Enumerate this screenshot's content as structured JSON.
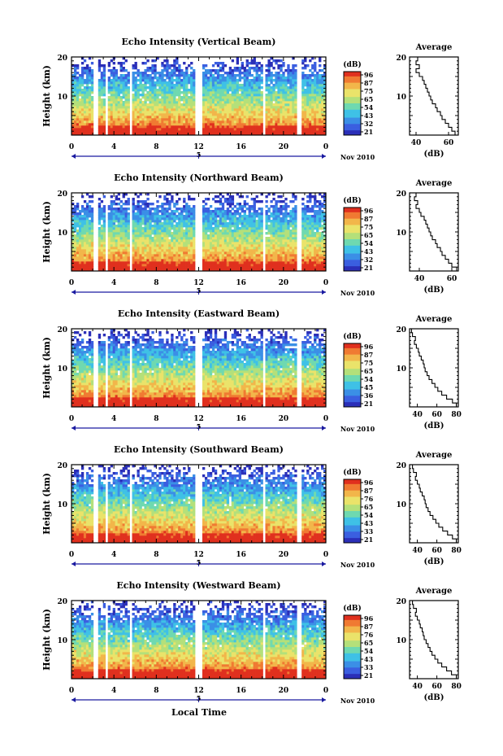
{
  "figure": {
    "xlabel": "Local Time",
    "date_label": "Nov 2010",
    "colors": {
      "colormap": [
        "#2b2fb8",
        "#3b5fe0",
        "#3b8fe6",
        "#3fc1e6",
        "#6fd9b0",
        "#b4e07a",
        "#eae36a",
        "#f2b64a",
        "#f07a32",
        "#e0301e"
      ]
    }
  },
  "chart_data": [
    {
      "type": "heatmap",
      "title": "Echo Intensity (Vertical Beam)",
      "xlabel": "",
      "ylabel": "Height (km)",
      "x_ticks": [
        "0",
        "4",
        "8",
        "12",
        "16",
        "20",
        "0"
      ],
      "day_label": "5",
      "y_ticks": [
        "10",
        "20"
      ],
      "xlim": [
        0,
        24
      ],
      "ylim": [
        0,
        20
      ],
      "gaps_hours": [
        [
          2.1,
          2.5
        ],
        [
          3.1,
          3.4
        ],
        [
          5.4,
          5.7
        ],
        [
          11.7,
          12.3
        ],
        [
          18.0,
          18.3
        ],
        [
          21.3,
          21.6
        ]
      ],
      "colorbar": {
        "label": "(dB)",
        "ticks": [
          "96",
          "87",
          "75",
          "65",
          "54",
          "43",
          "32",
          "21"
        ]
      },
      "profile": {
        "title": "Average",
        "xlabel": "(dB)",
        "x_ticks": [
          "40",
          "60"
        ],
        "xlim": [
          36,
          66
        ],
        "y_ticks": [
          "10",
          "20"
        ],
        "ylim": [
          0,
          20
        ],
        "height": [
          0.5,
          1.5,
          2.5,
          3.5,
          4.5,
          5.5,
          6.5,
          7.5,
          8.5,
          9.5,
          10.5,
          11.5,
          12.5,
          13.5,
          14.5,
          15.5,
          16.5,
          17.5,
          18.5,
          19.5
        ],
        "value": [
          64,
          62,
          60,
          58,
          56,
          55,
          53,
          52,
          50,
          49,
          48,
          47,
          46,
          45,
          44,
          42,
          40,
          42,
          40,
          41
        ]
      }
    },
    {
      "type": "heatmap",
      "title": "Echo Intensity (Northward Beam)",
      "xlabel": "",
      "ylabel": "Height (km)",
      "x_ticks": [
        "0",
        "4",
        "8",
        "12",
        "16",
        "20",
        "0"
      ],
      "day_label": "5",
      "y_ticks": [
        "10",
        "20"
      ],
      "xlim": [
        0,
        24
      ],
      "ylim": [
        0,
        20
      ],
      "gaps_hours": [
        [
          2.1,
          2.5
        ],
        [
          3.1,
          3.4
        ],
        [
          5.4,
          5.7
        ],
        [
          11.7,
          12.3
        ],
        [
          18.0,
          18.3
        ],
        [
          21.3,
          21.6
        ]
      ],
      "colorbar": {
        "label": "(dB)",
        "ticks": [
          "96",
          "87",
          "75",
          "65",
          "54",
          "43",
          "32",
          "21"
        ]
      },
      "profile": {
        "title": "Average",
        "xlabel": "(dB)",
        "x_ticks": [
          "40",
          "60"
        ],
        "xlim": [
          34,
          64
        ],
        "y_ticks": [
          "10",
          "20"
        ],
        "ylim": [
          0,
          20
        ],
        "height": [
          0.5,
          1.5,
          2.5,
          3.5,
          4.5,
          5.5,
          6.5,
          7.5,
          8.5,
          9.5,
          10.5,
          11.5,
          12.5,
          13.5,
          14.5,
          15.5,
          16.5,
          17.5,
          18.5,
          19.5
        ],
        "value": [
          63,
          60,
          58,
          56,
          54,
          53,
          51,
          50,
          48,
          47,
          46,
          45,
          44,
          43,
          41,
          40,
          38,
          39,
          37,
          38
        ]
      }
    },
    {
      "type": "heatmap",
      "title": "Echo Intensity (Eastward Beam)",
      "xlabel": "",
      "ylabel": "Height (km)",
      "x_ticks": [
        "0",
        "4",
        "8",
        "12",
        "16",
        "20",
        "0"
      ],
      "day_label": "5",
      "y_ticks": [
        "10",
        "20"
      ],
      "xlim": [
        0,
        24
      ],
      "ylim": [
        0,
        20
      ],
      "gaps_hours": [
        [
          2.1,
          2.5
        ],
        [
          3.1,
          3.4
        ],
        [
          5.4,
          5.7
        ],
        [
          11.7,
          12.3
        ],
        [
          18.0,
          18.3
        ],
        [
          21.3,
          21.6
        ]
      ],
      "colorbar": {
        "label": "(dB)",
        "ticks": [
          "96",
          "87",
          "75",
          "65",
          "54",
          "45",
          "36",
          "21"
        ]
      },
      "profile": {
        "title": "Average",
        "xlabel": "(dB)",
        "x_ticks": [
          "40",
          "60",
          "80"
        ],
        "xlim": [
          32,
          82
        ],
        "y_ticks": [
          "10",
          "20"
        ],
        "ylim": [
          0,
          20
        ],
        "height": [
          0.5,
          1.5,
          2.5,
          3.5,
          4.5,
          5.5,
          6.5,
          7.5,
          8.5,
          9.5,
          10.5,
          11.5,
          12.5,
          13.5,
          14.5,
          15.5,
          16.5,
          17.5,
          18.5,
          19.5
        ],
        "value": [
          80,
          76,
          70,
          65,
          61,
          58,
          55,
          52,
          50,
          48,
          47,
          46,
          44,
          42,
          41,
          39,
          37,
          38,
          35,
          34
        ]
      }
    },
    {
      "type": "heatmap",
      "title": "Echo Intensity (Southward Beam)",
      "xlabel": "",
      "ylabel": "Height (km)",
      "x_ticks": [
        "0",
        "4",
        "8",
        "12",
        "16",
        "20",
        "0"
      ],
      "day_label": "5",
      "y_ticks": [
        "10",
        "20"
      ],
      "xlim": [
        0,
        24
      ],
      "ylim": [
        0,
        20
      ],
      "gaps_hours": [
        [
          2.1,
          2.5
        ],
        [
          3.1,
          3.4
        ],
        [
          5.4,
          5.7
        ],
        [
          11.7,
          12.3
        ],
        [
          18.0,
          18.3
        ],
        [
          21.3,
          21.6
        ]
      ],
      "colorbar": {
        "label": "(dB)",
        "ticks": [
          "96",
          "87",
          "76",
          "65",
          "54",
          "43",
          "33",
          "21"
        ]
      },
      "profile": {
        "title": "Average",
        "xlabel": "(dB)",
        "x_ticks": [
          "40",
          "60",
          "80"
        ],
        "xlim": [
          32,
          82
        ],
        "y_ticks": [
          "10",
          "20"
        ],
        "ylim": [
          0,
          20
        ],
        "height": [
          0.5,
          1.5,
          2.5,
          3.5,
          4.5,
          5.5,
          6.5,
          7.5,
          8.5,
          9.5,
          10.5,
          11.5,
          12.5,
          13.5,
          14.5,
          15.5,
          16.5,
          17.5,
          18.5,
          19.5
        ],
        "value": [
          80,
          76,
          71,
          66,
          62,
          59,
          56,
          53,
          51,
          49,
          48,
          47,
          45,
          43,
          42,
          40,
          38,
          39,
          36,
          35
        ]
      }
    },
    {
      "type": "heatmap",
      "title": "Echo Intensity (Westward Beam)",
      "xlabel": "Local Time",
      "ylabel": "Height (km)",
      "x_ticks": [
        "0",
        "4",
        "8",
        "12",
        "16",
        "20",
        "0"
      ],
      "day_label": "5",
      "y_ticks": [
        "10",
        "20"
      ],
      "xlim": [
        0,
        24
      ],
      "ylim": [
        0,
        20
      ],
      "gaps_hours": [
        [
          2.1,
          2.5
        ],
        [
          3.1,
          3.4
        ],
        [
          5.4,
          5.7
        ],
        [
          11.7,
          12.3
        ],
        [
          18.0,
          18.3
        ],
        [
          21.3,
          21.6
        ]
      ],
      "colorbar": {
        "label": "(dB)",
        "ticks": [
          "96",
          "87",
          "76",
          "65",
          "54",
          "43",
          "33",
          "21"
        ]
      },
      "profile": {
        "title": "Average",
        "xlabel": "(dB)",
        "x_ticks": [
          "40",
          "60",
          "80"
        ],
        "xlim": [
          32,
          82
        ],
        "y_ticks": [
          "10",
          "20"
        ],
        "ylim": [
          0,
          20
        ],
        "height": [
          0.5,
          1.5,
          2.5,
          3.5,
          4.5,
          5.5,
          6.5,
          7.5,
          8.5,
          9.5,
          10.5,
          11.5,
          12.5,
          13.5,
          14.5,
          15.5,
          16.5,
          17.5,
          18.5,
          19.5
        ],
        "value": [
          80,
          75,
          70,
          65,
          61,
          58,
          55,
          53,
          51,
          49,
          47,
          46,
          45,
          43,
          42,
          40,
          38,
          39,
          36,
          35
        ]
      }
    }
  ]
}
